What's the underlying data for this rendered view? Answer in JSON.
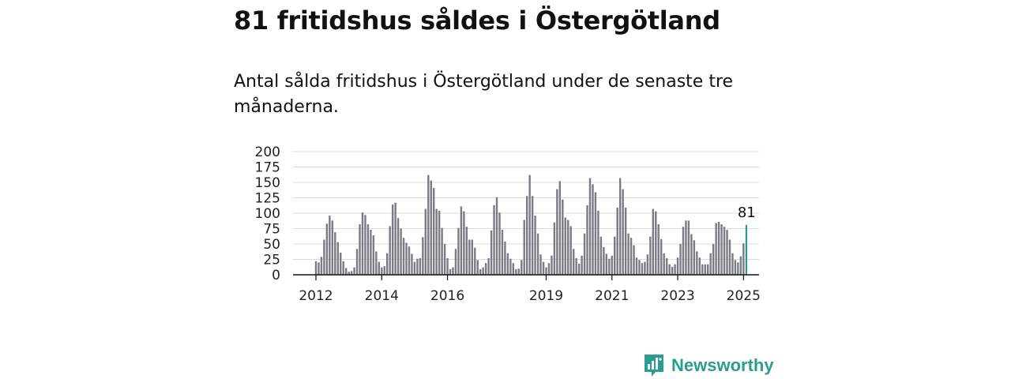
{
  "headline": "81 fritidshus såldes i Östergötland",
  "subtitle": "Antal sålda fritidshus i Östergötland under de senaste tre månaderna.",
  "brand": {
    "name": "Newsworthy",
    "color": "#2a9d8f"
  },
  "chart_data": {
    "type": "bar",
    "title": "",
    "xlabel": "",
    "ylabel": "",
    "ylim": [
      0,
      200
    ],
    "yticks": [
      0,
      25,
      50,
      75,
      100,
      125,
      150,
      175,
      200
    ],
    "xticks": [
      2012,
      2014,
      2016,
      2019,
      2021,
      2023,
      2025
    ],
    "x_start": "2012-01",
    "grid": true,
    "bar_color": "#7b7b83",
    "highlight_color": "#2a9d8f",
    "highlight_label": "81",
    "series": [
      {
        "values": [
          22,
          20,
          29,
          57,
          83,
          96,
          88,
          69,
          53,
          36,
          22,
          11,
          5,
          6,
          12,
          42,
          82,
          101,
          97,
          82,
          73,
          64,
          38,
          21,
          12,
          14,
          35,
          79,
          114,
          117,
          92,
          75,
          60,
          52,
          46,
          34,
          21,
          26,
          27,
          61,
          107,
          162,
          153,
          141,
          107,
          104,
          76,
          50,
          27,
          9,
          12,
          42,
          76,
          111,
          103,
          78,
          57,
          57,
          44,
          24,
          9,
          12,
          19,
          27,
          72,
          113,
          126,
          101,
          73,
          54,
          35,
          26,
          19,
          9,
          10,
          24,
          89,
          128,
          162,
          128,
          96,
          67,
          33,
          21,
          12,
          19,
          31,
          85,
          139,
          152,
          122,
          93,
          89,
          79,
          42,
          27,
          18,
          31,
          67,
          113,
          157,
          147,
          134,
          104,
          62,
          45,
          34,
          26,
          31,
          62,
          109,
          157,
          139,
          109,
          67,
          60,
          48,
          28,
          24,
          19,
          21,
          33,
          62,
          107,
          103,
          82,
          58,
          35,
          27,
          17,
          13,
          17,
          28,
          50,
          78,
          88,
          88,
          66,
          56,
          38,
          28,
          17,
          17,
          17,
          35,
          50,
          84,
          86,
          82,
          78,
          73,
          57,
          35,
          24,
          20,
          30,
          51,
          81
        ]
      }
    ]
  }
}
